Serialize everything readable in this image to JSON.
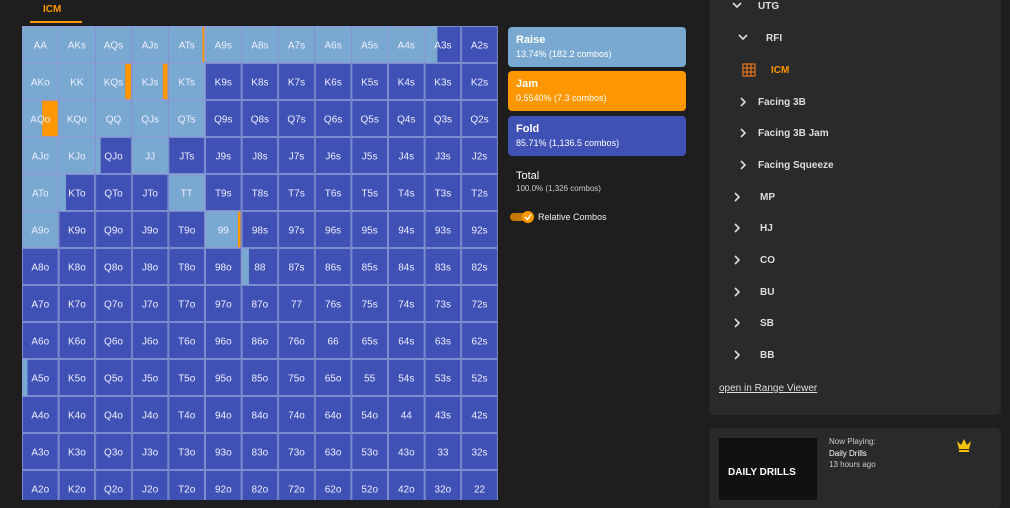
{
  "tab": "ICM",
  "grid": {
    "colors": {
      "raise": "#79a9d1",
      "jam": "#ff9800",
      "fold": "#3f51b5"
    },
    "rows": [
      {
        "hands": [
          "AA",
          "AKs",
          "AQs",
          "AJs",
          "ATs",
          "A9s",
          "A8s",
          "A7s",
          "A6s",
          "A5s",
          "A4s",
          "A3s",
          "A2s"
        ],
        "raise": [
          100,
          100,
          100,
          100,
          93,
          100,
          100,
          100,
          100,
          100,
          100,
          35,
          0
        ],
        "jam": [
          0,
          0,
          0,
          0,
          7,
          0,
          0,
          0,
          0,
          0,
          0,
          0,
          0
        ]
      },
      {
        "hands": [
          "AKo",
          "KK",
          "KQs",
          "KJs",
          "KTs",
          "K9s",
          "K8s",
          "K7s",
          "K6s",
          "K5s",
          "K4s",
          "K3s",
          "K2s"
        ],
        "raise": [
          100,
          100,
          82,
          85,
          100,
          0,
          0,
          0,
          0,
          0,
          0,
          0,
          0
        ],
        "jam": [
          0,
          0,
          18,
          15,
          0,
          0,
          0,
          0,
          0,
          0,
          0,
          0,
          0
        ]
      },
      {
        "hands": [
          "AQo",
          "KQo",
          "QQ",
          "QJs",
          "QTs",
          "Q9s",
          "Q8s",
          "Q7s",
          "Q6s",
          "Q5s",
          "Q4s",
          "Q3s",
          "Q2s"
        ],
        "raise": [
          55,
          100,
          100,
          100,
          100,
          0,
          0,
          0,
          0,
          0,
          0,
          0,
          0
        ],
        "jam": [
          45,
          0,
          0,
          0,
          0,
          0,
          0,
          0,
          0,
          0,
          0,
          0,
          0
        ]
      },
      {
        "hands": [
          "AJo",
          "KJo",
          "QJo",
          "JJ",
          "JTs",
          "J9s",
          "J8s",
          "J7s",
          "J6s",
          "J5s",
          "J4s",
          "J3s",
          "J2s"
        ],
        "raise": [
          100,
          100,
          15,
          100,
          0,
          0,
          0,
          0,
          0,
          0,
          0,
          0,
          0
        ],
        "jam": [
          0,
          0,
          0,
          0,
          0,
          0,
          0,
          0,
          0,
          0,
          0,
          0,
          0
        ]
      },
      {
        "hands": [
          "ATo",
          "KTo",
          "QTo",
          "JTo",
          "TT",
          "T9s",
          "T8s",
          "T7s",
          "T6s",
          "T5s",
          "T4s",
          "T3s",
          "T2s"
        ],
        "raise": [
          100,
          20,
          0,
          0,
          100,
          0,
          0,
          0,
          0,
          0,
          0,
          0,
          0
        ],
        "jam": [
          0,
          0,
          0,
          0,
          0,
          0,
          0,
          0,
          0,
          0,
          0,
          0,
          0
        ]
      },
      {
        "hands": [
          "A9o",
          "K9o",
          "Q9o",
          "J9o",
          "T9o",
          "99",
          "98s",
          "97s",
          "96s",
          "95s",
          "94s",
          "93s",
          "92s"
        ],
        "raise": [
          100,
          0,
          0,
          0,
          0,
          90,
          0,
          0,
          0,
          0,
          0,
          0,
          0
        ],
        "jam": [
          0,
          0,
          0,
          0,
          0,
          7,
          0,
          0,
          0,
          0,
          0,
          0,
          0
        ]
      },
      {
        "hands": [
          "A8o",
          "K8o",
          "Q8o",
          "J8o",
          "T8o",
          "98o",
          "88",
          "87s",
          "86s",
          "85s",
          "84s",
          "83s",
          "82s"
        ],
        "raise": [
          0,
          0,
          0,
          0,
          0,
          0,
          20,
          0,
          0,
          0,
          0,
          0,
          0
        ],
        "jam": [
          0,
          0,
          0,
          0,
          0,
          0,
          0,
          0,
          0,
          0,
          0,
          0,
          0
        ]
      },
      {
        "hands": [
          "A7o",
          "K7o",
          "Q7o",
          "J7o",
          "T7o",
          "97o",
          "87o",
          "77",
          "76s",
          "75s",
          "74s",
          "73s",
          "72s"
        ],
        "raise": [
          0,
          0,
          0,
          0,
          0,
          0,
          0,
          0,
          0,
          0,
          0,
          0,
          0
        ],
        "jam": [
          0,
          0,
          0,
          0,
          0,
          0,
          0,
          0,
          0,
          0,
          0,
          0,
          0
        ]
      },
      {
        "hands": [
          "A6o",
          "K6o",
          "Q6o",
          "J6o",
          "T6o",
          "96o",
          "86o",
          "76o",
          "66",
          "65s",
          "64s",
          "63s",
          "62s"
        ],
        "raise": [
          0,
          0,
          0,
          0,
          0,
          0,
          0,
          0,
          0,
          0,
          0,
          0,
          0
        ],
        "jam": [
          0,
          0,
          0,
          0,
          0,
          0,
          0,
          0,
          0,
          0,
          0,
          0,
          0
        ]
      },
      {
        "hands": [
          "A5o",
          "K5o",
          "Q5o",
          "J5o",
          "T5o",
          "95o",
          "85o",
          "75o",
          "65o",
          "55",
          "54s",
          "53s",
          "52s"
        ],
        "raise": [
          15,
          0,
          0,
          0,
          0,
          0,
          0,
          0,
          0,
          0,
          0,
          0,
          0
        ],
        "jam": [
          0,
          0,
          0,
          0,
          0,
          0,
          0,
          0,
          0,
          0,
          0,
          0,
          0
        ]
      },
      {
        "hands": [
          "A4o",
          "K4o",
          "Q4o",
          "J4o",
          "T4o",
          "94o",
          "84o",
          "74o",
          "64o",
          "54o",
          "44",
          "43s",
          "42s"
        ],
        "raise": [
          0,
          0,
          0,
          0,
          0,
          0,
          0,
          0,
          0,
          0,
          0,
          0,
          0
        ],
        "jam": [
          0,
          0,
          0,
          0,
          0,
          0,
          0,
          0,
          0,
          0,
          0,
          0,
          0
        ]
      },
      {
        "hands": [
          "A3o",
          "K3o",
          "Q3o",
          "J3o",
          "T3o",
          "93o",
          "83o",
          "73o",
          "63o",
          "53o",
          "43o",
          "33",
          "32s"
        ],
        "raise": [
          0,
          0,
          0,
          0,
          0,
          0,
          0,
          0,
          0,
          0,
          0,
          0,
          0
        ],
        "jam": [
          0,
          0,
          0,
          0,
          0,
          0,
          0,
          0,
          0,
          0,
          0,
          0,
          0
        ]
      },
      {
        "hands": [
          "A2o",
          "K2o",
          "Q2o",
          "J2o",
          "T2o",
          "92o",
          "82o",
          "72o",
          "62o",
          "52o",
          "42o",
          "32o",
          "22"
        ],
        "raise": [
          0,
          0,
          0,
          0,
          0,
          0,
          0,
          0,
          0,
          0,
          0,
          0,
          0
        ],
        "jam": [
          0,
          0,
          0,
          0,
          0,
          0,
          0,
          0,
          0,
          0,
          0,
          0,
          0
        ]
      }
    ]
  },
  "legend": [
    {
      "name": "Raise",
      "detail": "13.74% (182.2 combos)"
    },
    {
      "name": "Jam",
      "detail": "0.5540% (7.3 combos)"
    },
    {
      "name": "Fold",
      "detail": "85.71% (1,136.5 combos)"
    }
  ],
  "total": {
    "label": "Total",
    "detail": "100.0% (1,326 combos)"
  },
  "toggle": "Relative Combos",
  "nav": {
    "position": "UTG",
    "spots": [
      "RFI",
      "Facing 3B",
      "Facing 3B Jam",
      "Facing Squeeze"
    ],
    "active": "ICM",
    "others": [
      "MP",
      "HJ",
      "CO",
      "BU",
      "SB",
      "BB"
    ],
    "link": "open in Range Viewer"
  },
  "now_playing": {
    "heading": "Now Playing:",
    "title": "Daily Drills",
    "time": "13 hours ago",
    "thumbnail": "DAILY DRILLS"
  }
}
